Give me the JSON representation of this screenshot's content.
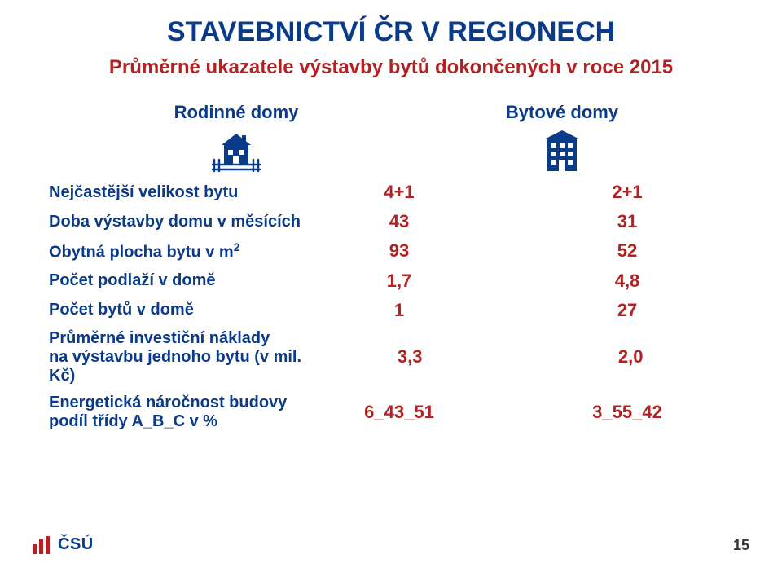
{
  "title_text": "STAVEBNICTVÍ ČR V REGIONECH",
  "title_color": "#0a3a8a",
  "subtitle_text": "Průměrné ukazatele výstavby bytů dokončených v roce 2015",
  "subtitle_color": "#b22222",
  "columns": [
    {
      "label": "Rodinné domy",
      "color": "#0a3a8a",
      "icon": "house-fence"
    },
    {
      "label": "Bytové domy",
      "color": "#0a3a8a",
      "icon": "apartment"
    }
  ],
  "label_color": "#0a3a8a",
  "value_color": "#b22222",
  "rows": [
    {
      "label_html": "Nejčastější velikost bytu",
      "v1": "4+1",
      "v2": "2+1"
    },
    {
      "label_html": "Doba výstavby domu v měsících",
      "v1": "43",
      "v2": "31"
    },
    {
      "label_html": "Obytná plocha bytu v m<span class=\"sup\">2</span>",
      "v1": "93",
      "v2": "52"
    },
    {
      "label_html": "Počet podlaží v domě",
      "v1": "1,7",
      "v2": "4,8"
    },
    {
      "label_html": "Počet bytů v domě",
      "v1": "1",
      "v2": "27"
    },
    {
      "label_html": "Průměrné investiční náklady<br>na výstavbu jednoho bytu (v mil. Kč)",
      "v1": "3,3",
      "v2": "2,0"
    },
    {
      "label_html": "Energetická náročnost budovy<br>podíl třídy A_B_C v %",
      "v1": "6_43_51",
      "v2": "3_55_42"
    }
  ],
  "logo": {
    "text": "ČSÚ",
    "bar_color": "#b22222",
    "text_color": "#0a3a8a"
  },
  "page_number": "15",
  "icons": {
    "house_fence_svg_color": "#0a3a8a",
    "apartment_svg_color": "#0a3a8a"
  }
}
